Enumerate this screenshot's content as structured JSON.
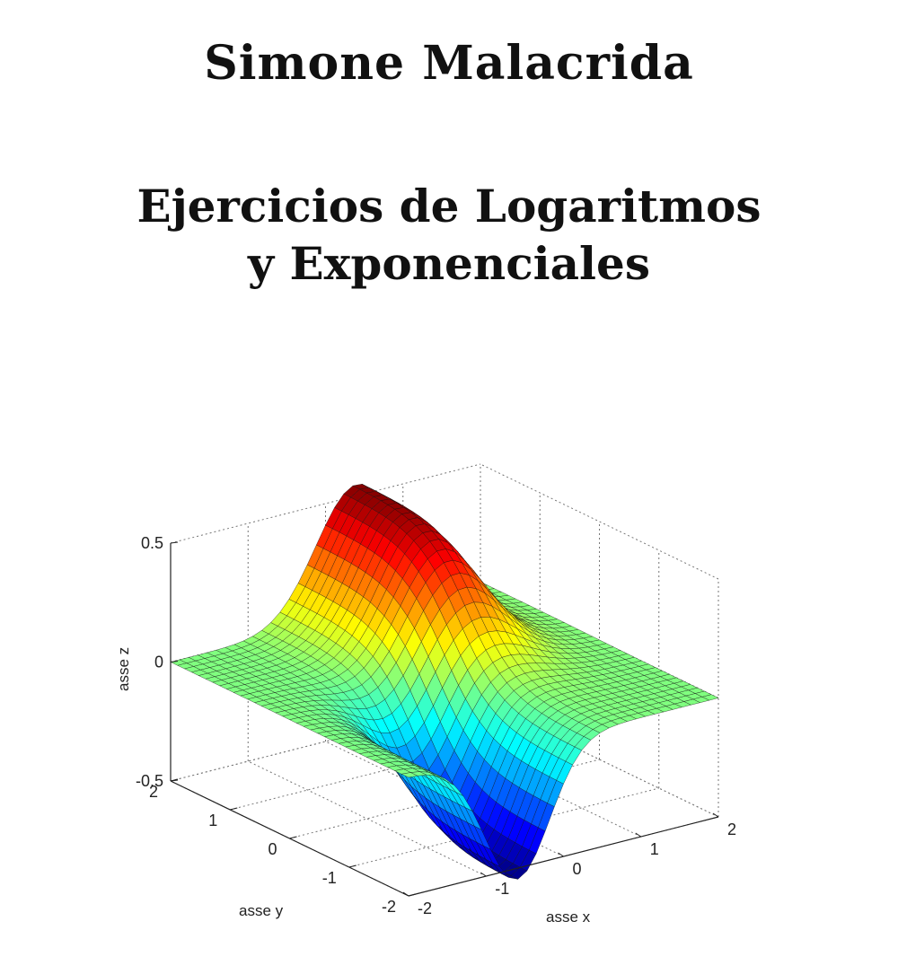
{
  "cover": {
    "author": "Simone Malacrida",
    "title_line1": "Ejercicios de Logaritmos",
    "title_line2": "y Exponenciales"
  },
  "chart_data": {
    "type": "surface3d",
    "xlabel": "asse x",
    "ylabel": "asse y",
    "zlabel": "asse z",
    "xlim": [
      -2,
      2
    ],
    "ylim": [
      -2,
      2
    ],
    "zlim": [
      -0.5,
      0.5
    ],
    "x_ticks": [
      "-2",
      "-1",
      "0",
      "1",
      "2"
    ],
    "y_ticks": [
      "-2",
      "-1",
      "0",
      "1",
      "2"
    ],
    "z_ticks": [
      "-0.5",
      "0",
      "0.5"
    ],
    "grid": true,
    "colormap": "jet"
  }
}
